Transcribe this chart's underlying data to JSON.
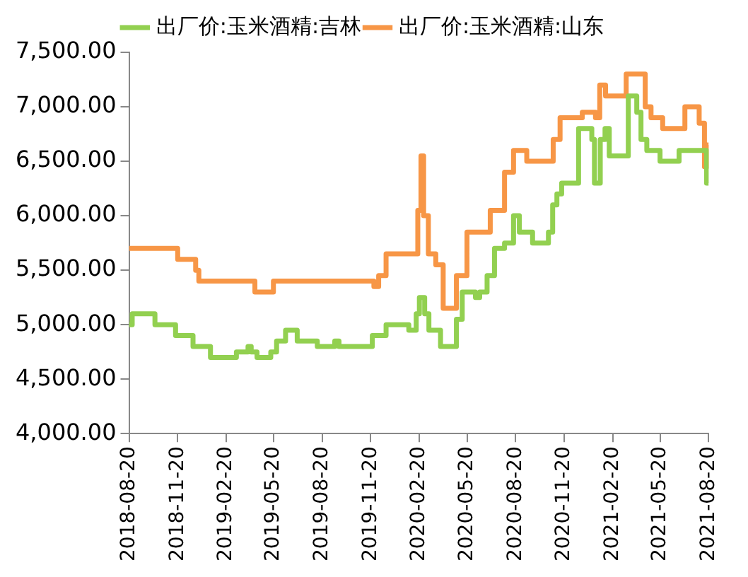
{
  "chart_data": {
    "type": "step",
    "legend": "top",
    "grid": false,
    "marker": "none",
    "line_style": "solid",
    "xlim": [
      "2018-08-20",
      "2021-08-20"
    ],
    "xticks": [
      "2018-08-20",
      "2018-11-20",
      "2019-02-20",
      "2019-05-20",
      "2019-08-20",
      "2019-11-20",
      "2020-02-20",
      "2020-05-20",
      "2020-08-20",
      "2020-11-20",
      "2021-02-20",
      "2021-05-20",
      "2021-08-20"
    ],
    "ylim": [
      4000,
      7500
    ],
    "yticks": [
      {
        "value": 4000,
        "label": "4,000.00"
      },
      {
        "value": 4500,
        "label": "4,500.00"
      },
      {
        "value": 5000,
        "label": "5,000.00"
      },
      {
        "value": 5500,
        "label": "5,500.00"
      },
      {
        "value": 6000,
        "label": "6,000.00"
      },
      {
        "value": 6500,
        "label": "6,500.00"
      },
      {
        "value": 7000,
        "label": "7,000.00"
      },
      {
        "value": 7500,
        "label": "7,500.00"
      }
    ],
    "series": [
      {
        "name": "出厂价:玉米酒精:吉林",
        "color": "#92d050",
        "x": [
          "2018-08-20",
          "2018-08-26",
          "2018-10-08",
          "2018-11-16",
          "2018-12-19",
          "2019-01-21",
          "2019-03-11",
          "2019-04-02",
          "2019-04-08",
          "2019-04-19",
          "2019-05-15",
          "2019-05-26",
          "2019-06-12",
          "2019-07-04",
          "2019-08-11",
          "2019-09-13",
          "2019-09-21",
          "2019-11-23",
          "2019-12-19",
          "2020-01-31",
          "2020-02-14",
          "2020-02-20",
          "2020-03-01",
          "2020-03-09",
          "2020-03-31",
          "2020-04-30",
          "2020-05-11",
          "2020-06-05",
          "2020-06-13",
          "2020-06-27",
          "2020-07-11",
          "2020-07-30",
          "2020-08-16",
          "2020-08-27",
          "2020-09-21",
          "2020-10-21",
          "2020-10-29",
          "2020-11-06",
          "2020-11-15",
          "2020-12-17",
          "2021-01-11",
          "2021-01-16",
          "2021-01-27",
          "2021-02-05",
          "2021-02-13",
          "2021-03-21",
          "2021-04-06",
          "2021-04-14",
          "2021-04-25",
          "2021-05-20",
          "2021-06-25",
          "2021-08-16",
          "2021-08-20"
        ],
        "values": [
          5000,
          5100,
          5000,
          4900,
          4800,
          4700,
          4750,
          4800,
          4750,
          4700,
          4750,
          4850,
          4950,
          4850,
          4800,
          4850,
          4800,
          4900,
          5000,
          4950,
          5100,
          5250,
          5100,
          4950,
          4800,
          5050,
          5300,
          5250,
          5300,
          5450,
          5700,
          5750,
          6000,
          5850,
          5750,
          5850,
          6100,
          6200,
          6300,
          6800,
          6700,
          6300,
          6700,
          6800,
          6550,
          7100,
          6950,
          6700,
          6600,
          6500,
          6600,
          6300,
          6300
        ]
      },
      {
        "name": "出厂价:玉米酒精:山东",
        "color": "#f79646",
        "x": [
          "2018-08-20",
          "2018-11-20",
          "2018-12-24",
          "2018-12-30",
          "2019-04-15",
          "2019-05-20",
          "2019-11-26",
          "2019-12-05",
          "2019-12-19",
          "2020-02-17",
          "2020-02-23",
          "2020-02-28",
          "2020-03-08",
          "2020-03-22",
          "2020-04-05",
          "2020-04-30",
          "2020-05-20",
          "2020-07-03",
          "2020-07-30",
          "2020-08-16",
          "2020-09-10",
          "2020-10-30",
          "2020-11-12",
          "2020-12-24",
          "2021-01-18",
          "2021-01-26",
          "2021-02-06",
          "2021-03-17",
          "2021-04-22",
          "2021-05-03",
          "2021-05-25",
          "2021-07-06",
          "2021-08-02",
          "2021-08-12",
          "2021-08-17",
          "2021-08-20"
        ],
        "values": [
          5700,
          5600,
          5500,
          5400,
          5300,
          5400,
          5350,
          5450,
          5650,
          6050,
          6550,
          6000,
          5650,
          5550,
          5150,
          5450,
          5850,
          6050,
          6400,
          6600,
          6500,
          6700,
          6900,
          6950,
          6900,
          7200,
          7100,
          7300,
          7000,
          6900,
          6800,
          7000,
          6850,
          6450,
          6650,
          6650
        ]
      }
    ]
  }
}
